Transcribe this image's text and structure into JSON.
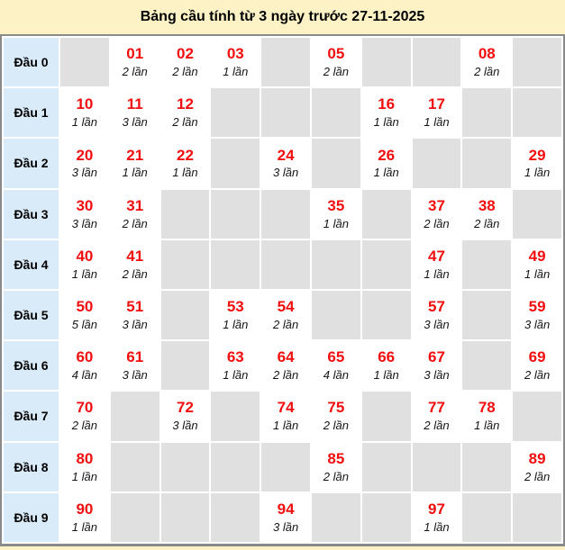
{
  "title": "Bảng cầu tính từ 3 ngày trước 27-11-2025",
  "unit_word": "lần",
  "colors": {
    "page_bg": "#FCF2C5",
    "label_bg": "#D9EAF8",
    "empty_bg": "#E0E0E0",
    "filled_bg": "#FFFFFF",
    "number_red": "#F10E0E",
    "border_gray": "#8A8A8A"
  },
  "table": {
    "digit_columns": 10,
    "rows": [
      {
        "label": "Đầu 0",
        "cells": [
          null,
          {
            "num": "01",
            "count": "2 lần"
          },
          {
            "num": "02",
            "count": "2 lần"
          },
          {
            "num": "03",
            "count": "1 lần"
          },
          null,
          {
            "num": "05",
            "count": "2 lần"
          },
          null,
          null,
          {
            "num": "08",
            "count": "2 lần"
          },
          null
        ]
      },
      {
        "label": "Đầu 1",
        "cells": [
          {
            "num": "10",
            "count": "1 lần"
          },
          {
            "num": "11",
            "count": "3 lần"
          },
          {
            "num": "12",
            "count": "2 lần"
          },
          null,
          null,
          null,
          {
            "num": "16",
            "count": "1 lần"
          },
          {
            "num": "17",
            "count": "1 lần"
          },
          null,
          null
        ]
      },
      {
        "label": "Đầu 2",
        "cells": [
          {
            "num": "20",
            "count": "3 lần"
          },
          {
            "num": "21",
            "count": "1 lần"
          },
          {
            "num": "22",
            "count": "1 lần"
          },
          null,
          {
            "num": "24",
            "count": "3 lần"
          },
          null,
          {
            "num": "26",
            "count": "1 lần"
          },
          null,
          null,
          {
            "num": "29",
            "count": "1 lần"
          }
        ]
      },
      {
        "label": "Đầu 3",
        "cells": [
          {
            "num": "30",
            "count": "3 lần"
          },
          {
            "num": "31",
            "count": "2 lần"
          },
          null,
          null,
          null,
          {
            "num": "35",
            "count": "1 lần"
          },
          null,
          {
            "num": "37",
            "count": "2 lần"
          },
          {
            "num": "38",
            "count": "2 lần"
          },
          null
        ]
      },
      {
        "label": "Đầu 4",
        "cells": [
          {
            "num": "40",
            "count": "1 lần"
          },
          {
            "num": "41",
            "count": "2 lần"
          },
          null,
          null,
          null,
          null,
          null,
          {
            "num": "47",
            "count": "1 lần"
          },
          null,
          {
            "num": "49",
            "count": "1 lần"
          }
        ]
      },
      {
        "label": "Đầu 5",
        "cells": [
          {
            "num": "50",
            "count": "5 lần"
          },
          {
            "num": "51",
            "count": "3 lần"
          },
          null,
          {
            "num": "53",
            "count": "1 lần"
          },
          {
            "num": "54",
            "count": "2 lần"
          },
          null,
          null,
          {
            "num": "57",
            "count": "3 lần"
          },
          null,
          {
            "num": "59",
            "count": "3 lần"
          }
        ]
      },
      {
        "label": "Đầu 6",
        "cells": [
          {
            "num": "60",
            "count": "4 lần"
          },
          {
            "num": "61",
            "count": "3 lần"
          },
          null,
          {
            "num": "63",
            "count": "1 lần"
          },
          {
            "num": "64",
            "count": "2 lần"
          },
          {
            "num": "65",
            "count": "4 lần"
          },
          {
            "num": "66",
            "count": "1 lần"
          },
          {
            "num": "67",
            "count": "3 lần"
          },
          null,
          {
            "num": "69",
            "count": "2 lần"
          }
        ]
      },
      {
        "label": "Đầu 7",
        "cells": [
          {
            "num": "70",
            "count": "2 lần"
          },
          null,
          {
            "num": "72",
            "count": "3 lần"
          },
          null,
          {
            "num": "74",
            "count": "1 lần"
          },
          {
            "num": "75",
            "count": "2 lần"
          },
          null,
          {
            "num": "77",
            "count": "2 lần"
          },
          {
            "num": "78",
            "count": "1 lần"
          },
          null
        ]
      },
      {
        "label": "Đầu 8",
        "cells": [
          {
            "num": "80",
            "count": "1 lần"
          },
          null,
          null,
          null,
          null,
          {
            "num": "85",
            "count": "2 lần"
          },
          null,
          null,
          null,
          {
            "num": "89",
            "count": "2 lần"
          }
        ]
      },
      {
        "label": "Đầu 9",
        "cells": [
          {
            "num": "90",
            "count": "1 lần"
          },
          null,
          null,
          null,
          {
            "num": "94",
            "count": "3 lần"
          },
          null,
          null,
          {
            "num": "97",
            "count": "1 lần"
          },
          null,
          null
        ]
      }
    ]
  }
}
